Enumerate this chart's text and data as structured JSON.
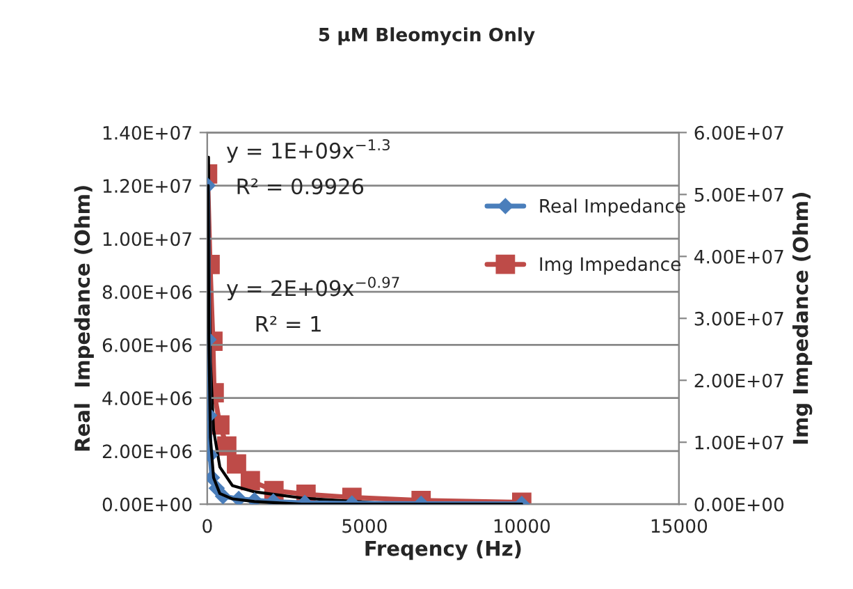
{
  "chart_data": {
    "type": "line",
    "title": "5 µM Bleomycin Only",
    "xlabel": "Freqency (Hz)",
    "ylabel": "Real  Impedance (Ohm)",
    "y2label": "Img Impedance (Ohm)",
    "xlim": [
      0,
      15000
    ],
    "xticks": [
      0,
      5000,
      10000,
      15000
    ],
    "ylim": [
      0,
      14000000
    ],
    "yticks": [
      {
        "value": 0,
        "label": "0.00E+00"
      },
      {
        "value": 2000000,
        "label": "2.00E+06"
      },
      {
        "value": 4000000,
        "label": "4.00E+06"
      },
      {
        "value": 6000000,
        "label": "6.00E+06"
      },
      {
        "value": 8000000,
        "label": "8.00E+06"
      },
      {
        "value": 10000000,
        "label": "1.00E+07"
      },
      {
        "value": 12000000,
        "label": "1.20E+07"
      },
      {
        "value": 14000000,
        "label": "1.40E+07"
      }
    ],
    "y2lim": [
      0,
      60000000
    ],
    "y2ticks": [
      {
        "value": 0,
        "label": "0.00E+00"
      },
      {
        "value": 10000000,
        "label": "1.00E+07"
      },
      {
        "value": 20000000,
        "label": "2.00E+07"
      },
      {
        "value": 30000000,
        "label": "3.00E+07"
      },
      {
        "value": 40000000,
        "label": "4.00E+07"
      },
      {
        "value": 50000000,
        "label": "5.00E+07"
      },
      {
        "value": 60000000,
        "label": "6.00E+07"
      }
    ],
    "grid": "y",
    "legend": "right",
    "series": [
      {
        "name": "Real Impedance",
        "color": "#4a7ebb",
        "marker": "diamond",
        "x": [
          10,
          40,
          60,
          90,
          150,
          300,
          500,
          1000,
          1500,
          2100,
          3100,
          4600,
          6800,
          10000
        ],
        "values": [
          12000000,
          6200000,
          3350000,
          1850000,
          1000000,
          600000,
          300000,
          200000,
          150000,
          100000,
          50000,
          30000,
          20000,
          10000
        ]
      },
      {
        "name": "Img Impedance",
        "color": "#be4b48",
        "marker": "square",
        "axis": "y2",
        "x": [
          10,
          90,
          180,
          220,
          400,
          620,
          930,
          1370,
          2120,
          3140,
          4600,
          6800,
          10000
        ],
        "values": [
          53300000,
          38700000,
          26300000,
          18000000,
          12800000,
          9400000,
          6500000,
          3800000,
          2200000,
          1600000,
          1100000,
          600000,
          300000
        ]
      },
      {
        "type": "line",
        "color": "#000000",
        "marker": "none",
        "x": [
          30,
          50,
          100,
          200,
          400,
          800,
          1500,
          3000,
          6000,
          10000
        ],
        "values": [
          12000000,
          6200000,
          2500000,
          1000000,
          400000,
          200000,
          100000,
          0,
          0,
          0
        ]
      },
      {
        "type": "line",
        "color": "#000000",
        "marker": "none",
        "axis": "y2",
        "x": [
          40,
          60,
          100,
          200,
          400,
          800,
          1500,
          3000,
          6000,
          10000
        ],
        "values": [
          56000000,
          38000000,
          23000000,
          12000000,
          6000000,
          3000000,
          2000000,
          1000000,
          0,
          0
        ]
      }
    ],
    "annotations": [
      "y = 1E+09x$^{−1.3}$",
      "R² = 0.9926",
      "y = 2E+09x$^{−0.97}$",
      "R² = 1"
    ]
  }
}
